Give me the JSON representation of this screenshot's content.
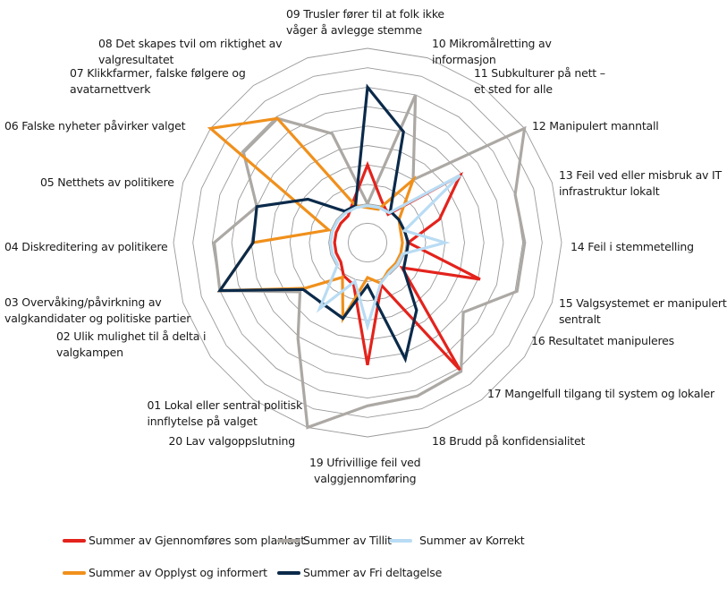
{
  "chart_data": {
    "type": "radar",
    "grid": true,
    "rlim": [
      0,
      10
    ],
    "ring_count": 10,
    "legend_position": "bottom",
    "categories": [
      {
        "id": "09",
        "lines": [
          "09 Trusler fører til at folk ikke",
          "våger å avlegge stemme"
        ]
      },
      {
        "id": "10",
        "lines": [
          "10 Mikromålretting av",
          "informasjon"
        ]
      },
      {
        "id": "11",
        "lines": [
          "11 Subkulturer på nett –",
          "et sted for alle"
        ]
      },
      {
        "id": "12",
        "lines": [
          "12 Manipulert manntall"
        ]
      },
      {
        "id": "13",
        "lines": [
          "13 Feil ved eller misbruk av IT",
          "infrastruktur lokalt"
        ]
      },
      {
        "id": "14",
        "lines": [
          "14 Feil i stemmetelling"
        ]
      },
      {
        "id": "15",
        "lines": [
          "15 Valgsystemet er manipulert",
          "sentralt"
        ]
      },
      {
        "id": "16",
        "lines": [
          "16 Resultatet manipuleres"
        ]
      },
      {
        "id": "17",
        "lines": [
          "17 Mangelfull tilgang til system og lokaler"
        ]
      },
      {
        "id": "18",
        "lines": [
          "18 Brudd på konfidensialitet"
        ]
      },
      {
        "id": "19",
        "lines": [
          "19 Ufrivillige feil ved",
          "valggjennomføring"
        ]
      },
      {
        "id": "20",
        "lines": [
          "20 Lav valgoppslutning"
        ]
      },
      {
        "id": "01",
        "lines": [
          "01 Lokal eller sentral politisk",
          "innflytelse på valget"
        ]
      },
      {
        "id": "02",
        "lines": [
          "02 Ulik mulighet til å delta i",
          "valgkampen"
        ]
      },
      {
        "id": "03",
        "lines": [
          "03 Overvåking/påvirkning av",
          "valgkandidater og politiske partier"
        ]
      },
      {
        "id": "04",
        "lines": [
          "04 Diskreditering av politikere"
        ]
      },
      {
        "id": "05",
        "lines": [
          "05 Netthets av politikere"
        ]
      },
      {
        "id": "06",
        "lines": [
          "06 Falske nyheter påvirker valget"
        ]
      },
      {
        "id": "07",
        "lines": [
          "07 Klikkfarmer, falske følgere og",
          "avatarnettverk"
        ]
      },
      {
        "id": "08",
        "lines": [
          "08 Det skapes tvil om riktighet av",
          "valgresultatet"
        ]
      }
    ],
    "series": [
      {
        "name": "Summer av Tillit",
        "color": "#aca8a4",
        "values": [
          2.0,
          8.0,
          4.0,
          10.0,
          8.0,
          8.1,
          8.1,
          6.1,
          8.2,
          8.3,
          8.4,
          10.0,
          6.1,
          4.3,
          8.0,
          7.9,
          6.0,
          7.9,
          7.9,
          5.9
        ]
      },
      {
        "name": "Summer av Gjennomføres som planlagt",
        "color": "#e3231c",
        "values": [
          4.0,
          2.3,
          1.8,
          5.9,
          3.9,
          2.1,
          6.1,
          2.2,
          8.1,
          2.3,
          6.3,
          2.3,
          2.1,
          1.7,
          1.7,
          1.7,
          1.7,
          1.7,
          1.7,
          2.3
        ]
      },
      {
        "name": "Summer av Opplyst og informert",
        "color": "#f0901c",
        "values": [
          1.8,
          1.8,
          4.0,
          2.0,
          1.8,
          1.8,
          1.8,
          1.8,
          1.8,
          2.2,
          1.8,
          4.1,
          2.2,
          4.0,
          8.0,
          5.9,
          2.1,
          10.0,
          7.9,
          2.0
        ]
      },
      {
        "name": "Summer av Fri deltagelse",
        "color": "#0b2a4a",
        "values": [
          8.0,
          6.0,
          2.0,
          2.0,
          2.0,
          2.1,
          2.1,
          2.3,
          4.3,
          6.3,
          2.2,
          4.1,
          3.9,
          4.1,
          8.0,
          5.9,
          6.0,
          3.8,
          2.0,
          2.0
        ]
      },
      {
        "name": "Summer av Korrekt",
        "color": "#b9dcf4",
        "values": [
          1.9,
          1.9,
          1.9,
          5.9,
          2.0,
          4.0,
          1.9,
          1.9,
          1.9,
          2.2,
          4.3,
          2.1,
          4.2,
          1.9,
          1.9,
          1.9,
          1.9,
          1.9,
          1.9,
          1.9
        ]
      }
    ]
  },
  "legend": [
    {
      "label": "Summer av Gjennomføres som planlagt",
      "color": "#e3231c"
    },
    {
      "label": "Summer av Tillit",
      "color": "#aca8a4"
    },
    {
      "label": "Summer av Korrekt",
      "color": "#b9dcf4"
    },
    {
      "label": "Summer av Opplyst og informert",
      "color": "#f0901c"
    },
    {
      "label": "Summer av Fri deltagelse",
      "color": "#0b2a4a"
    }
  ]
}
